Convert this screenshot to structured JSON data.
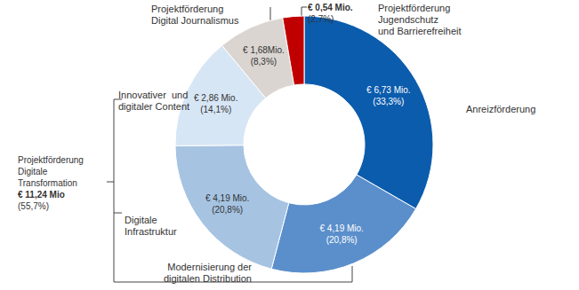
{
  "chart_data": {
    "type": "pie",
    "categories": [
      "Anreizförderung",
      "Modernisierung der\ndigitalen Distribution",
      "Digitale\nInfrastruktur",
      "Innovativer  und\ndigitaler Content",
      "Projektförderung\nDigital Journalismus",
      "Projektförderung\nJugendschutz\nund Barrierefreiheit"
    ],
    "values": [
      6.73,
      4.19,
      4.19,
      2.86,
      1.68,
      0.54
    ],
    "value_labels": [
      "€ 6,73 Mio.\n(33,3%)",
      "€ 4,19 Mio.\n(20,8%)",
      "€ 4,19 Mio.\n(20,8%)",
      "€ 2,86 Mio.\n(14,1%)",
      "€ 1,68Mio.\n(8,3%)",
      "€ 0,54 Mio.\n(2,7%)"
    ],
    "colors": [
      "#0B5CAD",
      "#5B8FCB",
      "#A6C3E2",
      "#D7E6F5",
      "#DAD5D1",
      "#C00000"
    ],
    "data_labels": true,
    "groups": [
      {
        "label": "Projektförderung\nDigitale\nTransformation",
        "value_label": "€ 11,24 Mio",
        "share_label": "(55,7%)"
      }
    ]
  }
}
